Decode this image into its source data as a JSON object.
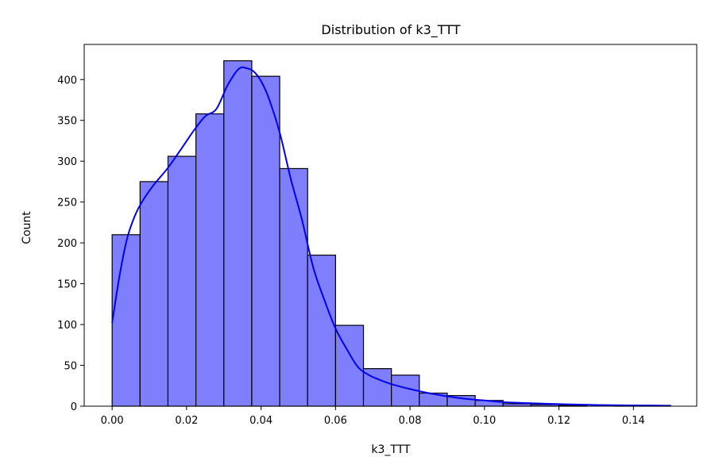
{
  "chart_data": {
    "type": "bar",
    "title": "Distribution of k3_TTT",
    "xlabel": "k3_TTT",
    "ylabel": "Count",
    "xlim": [
      -0.0075,
      0.157
    ],
    "ylim": [
      0,
      443
    ],
    "xticks": [
      0.0,
      0.02,
      0.04,
      0.06,
      0.08,
      0.1,
      0.12,
      0.14
    ],
    "xtick_labels": [
      "0.00",
      "0.02",
      "0.04",
      "0.06",
      "0.08",
      "0.10",
      "0.12",
      "0.14"
    ],
    "yticks": [
      0,
      50,
      100,
      150,
      200,
      250,
      300,
      350,
      400
    ],
    "ytick_labels": [
      "0",
      "50",
      "100",
      "150",
      "200",
      "250",
      "300",
      "350",
      "400"
    ],
    "bin_edges": [
      0.0,
      0.0075,
      0.015,
      0.0225,
      0.03,
      0.0375,
      0.045,
      0.0525,
      0.06,
      0.0675,
      0.075,
      0.0825,
      0.09,
      0.0975,
      0.105,
      0.1125,
      0.12,
      0.1275,
      0.135,
      0.1425,
      0.15
    ],
    "counts": [
      210,
      275,
      306,
      358,
      423,
      404,
      291,
      185,
      99,
      46,
      38,
      16,
      13,
      7,
      3,
      2,
      1,
      0,
      1,
      1
    ],
    "kde": {
      "x": [
        0.0,
        0.002,
        0.004,
        0.006,
        0.008,
        0.011,
        0.015,
        0.019,
        0.022,
        0.025,
        0.028,
        0.031,
        0.034,
        0.036,
        0.038,
        0.04,
        0.042,
        0.045,
        0.048,
        0.051,
        0.054,
        0.057,
        0.06,
        0.063,
        0.066,
        0.069,
        0.072,
        0.075,
        0.08,
        0.085,
        0.09,
        0.095,
        0.1,
        0.105,
        0.11,
        0.12,
        0.13,
        0.14,
        0.15
      ],
      "y": [
        102,
        160,
        205,
        232,
        250,
        270,
        292,
        318,
        338,
        355,
        364,
        393,
        413,
        414,
        410,
        398,
        378,
        335,
        278,
        228,
        170,
        130,
        95,
        70,
        48,
        38,
        32,
        27,
        21,
        16,
        12,
        9,
        7,
        5,
        4,
        2.5,
        1.5,
        1,
        0.5
      ],
      "color": "#0000ee"
    },
    "bar_color": "#7f7ffe",
    "grid": false
  }
}
